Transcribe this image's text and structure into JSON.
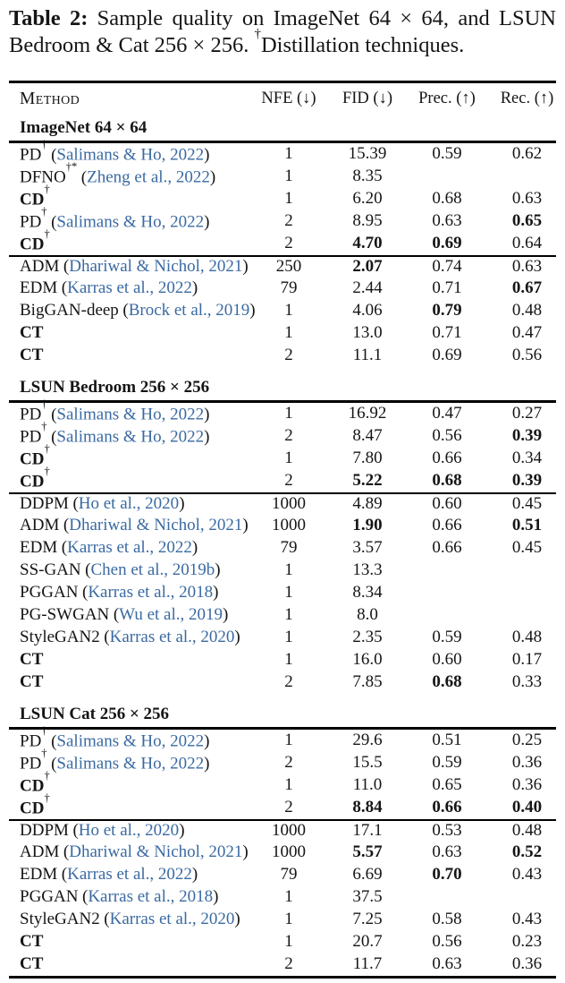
{
  "colors": {
    "citation_link": "#3a6aa2",
    "text": "#151515",
    "rule": "#000000"
  },
  "punct": {
    "open": "(",
    "close": ")"
  },
  "caption": {
    "label": "Table 2:",
    "body": " Sample quality on ImageNet 64 × 64, and LSUN Bedroom & Cat 256 × 256. ",
    "dagger": "†",
    "tail": "Distillation techniques."
  },
  "table": {
    "header": {
      "method": "Method",
      "nfe": "NFE (↓)",
      "fid": "FID (↓)",
      "prec": "Prec. (↑)",
      "rec": "Rec. (↑)"
    },
    "sections": [
      {
        "title": "ImageNet 64 × 64",
        "rows": [
          {
            "m": "PD",
            "sup": "†",
            "cite": "Salimans & Ho, 2022",
            "nfe": "1",
            "fid": "15.39",
            "prec": "0.59",
            "rec": "0.62"
          },
          {
            "m": "DFNO",
            "sup": "†*",
            "cite": "Zheng et al., 2022",
            "nfe": "1",
            "fid": "8.35"
          },
          {
            "m": "CD",
            "sup": "†",
            "nfe": "1",
            "fid": "6.20",
            "prec": "0.68",
            "rec": "0.63"
          },
          {
            "m": "PD",
            "sup": "†",
            "cite": "Salimans & Ho, 2022",
            "nfe": "2",
            "fid": "8.95",
            "prec": "0.63",
            "rec": "0.65"
          },
          {
            "m": "CD",
            "sup": "†",
            "nfe": "2",
            "fid": "4.70",
            "prec": "0.69",
            "rec": "0.64"
          },
          {
            "m": "ADM",
            "cite": "Dhariwal & Nichol, 2021",
            "nfe": "250",
            "fid": "2.07",
            "prec": "0.74",
            "rec": "0.63"
          },
          {
            "m": "EDM",
            "cite": "Karras et al., 2022",
            "nfe": "79",
            "fid": "2.44",
            "prec": "0.71",
            "rec": "0.67"
          },
          {
            "m": "BigGAN-deep",
            "cite": "Brock et al., 2019",
            "nfe": "1",
            "fid": "4.06",
            "prec": "0.79",
            "rec": "0.48"
          },
          {
            "m": "CT",
            "nfe": "1",
            "fid": "13.0",
            "prec": "0.71",
            "rec": "0.47"
          },
          {
            "m": "CT",
            "nfe": "2",
            "fid": "11.1",
            "prec": "0.69",
            "rec": "0.56"
          }
        ]
      },
      {
        "title": "LSUN Bedroom 256 × 256",
        "rows": [
          {
            "m": "PD",
            "sup": "†",
            "cite": "Salimans & Ho, 2022",
            "nfe": "1",
            "fid": "16.92",
            "prec": "0.47",
            "rec": "0.27"
          },
          {
            "m": "PD",
            "sup": "†",
            "cite": "Salimans & Ho, 2022",
            "nfe": "2",
            "fid": "8.47",
            "prec": "0.56",
            "rec": "0.39"
          },
          {
            "m": "CD",
            "sup": "†",
            "nfe": "1",
            "fid": "7.80",
            "prec": "0.66",
            "rec": "0.34"
          },
          {
            "m": "CD",
            "sup": "†",
            "nfe": "2",
            "fid": "5.22",
            "prec": "0.68",
            "rec": "0.39"
          },
          {
            "m": "DDPM",
            "cite": "Ho et al., 2020",
            "nfe": "1000",
            "fid": "4.89",
            "prec": "0.60",
            "rec": "0.45"
          },
          {
            "m": "ADM",
            "cite": "Dhariwal & Nichol, 2021",
            "nfe": "1000",
            "fid": "1.90",
            "prec": "0.66",
            "rec": "0.51"
          },
          {
            "m": "EDM",
            "cite": "Karras et al., 2022",
            "nfe": "79",
            "fid": "3.57",
            "prec": "0.66",
            "rec": "0.45"
          },
          {
            "m": "SS-GAN",
            "cite": "Chen et al., 2019b",
            "nfe": "1",
            "fid": "13.3"
          },
          {
            "m": "PGGAN",
            "cite": "Karras et al., 2018",
            "nfe": "1",
            "fid": "8.34"
          },
          {
            "m": "PG-SWGAN",
            "cite": "Wu et al., 2019",
            "nfe": "1",
            "fid": "8.0"
          },
          {
            "m": "StyleGAN2",
            "cite": "Karras et al., 2020",
            "nfe": "1",
            "fid": "2.35",
            "prec": "0.59",
            "rec": "0.48"
          },
          {
            "m": "CT",
            "nfe": "1",
            "fid": "16.0",
            "prec": "0.60",
            "rec": "0.17"
          },
          {
            "m": "CT",
            "nfe": "2",
            "fid": "7.85",
            "prec": "0.68",
            "rec": "0.33"
          }
        ]
      },
      {
        "title": "LSUN Cat 256 × 256",
        "rows": [
          {
            "m": "PD",
            "sup": "†",
            "cite": "Salimans & Ho, 2022",
            "nfe": "1",
            "fid": "29.6",
            "prec": "0.51",
            "rec": "0.25"
          },
          {
            "m": "PD",
            "sup": "†",
            "cite": "Salimans & Ho, 2022",
            "nfe": "2",
            "fid": "15.5",
            "prec": "0.59",
            "rec": "0.36"
          },
          {
            "m": "CD",
            "sup": "†",
            "nfe": "1",
            "fid": "11.0",
            "prec": "0.65",
            "rec": "0.36"
          },
          {
            "m": "CD",
            "sup": "†",
            "nfe": "2",
            "fid": "8.84",
            "prec": "0.66",
            "rec": "0.40"
          },
          {
            "m": "DDPM",
            "cite": "Ho et al., 2020",
            "nfe": "1000",
            "fid": "17.1",
            "prec": "0.53",
            "rec": "0.48"
          },
          {
            "m": "ADM",
            "cite": "Dhariwal & Nichol, 2021",
            "nfe": "1000",
            "fid": "5.57",
            "prec": "0.63",
            "rec": "0.52"
          },
          {
            "m": "EDM",
            "cite": "Karras et al., 2022",
            "nfe": "79",
            "fid": "6.69",
            "prec": "0.70",
            "rec": "0.43"
          },
          {
            "m": "PGGAN",
            "cite": "Karras et al., 2018",
            "nfe": "1",
            "fid": "37.5"
          },
          {
            "m": "StyleGAN2",
            "cite": "Karras et al., 2020",
            "nfe": "1",
            "fid": "7.25",
            "prec": "0.58",
            "rec": "0.43"
          },
          {
            "m": "CT",
            "nfe": "1",
            "fid": "20.7",
            "prec": "0.56",
            "rec": "0.23"
          },
          {
            "m": "CT",
            "nfe": "2",
            "fid": "11.7",
            "prec": "0.63",
            "rec": "0.36"
          }
        ]
      }
    ]
  }
}
